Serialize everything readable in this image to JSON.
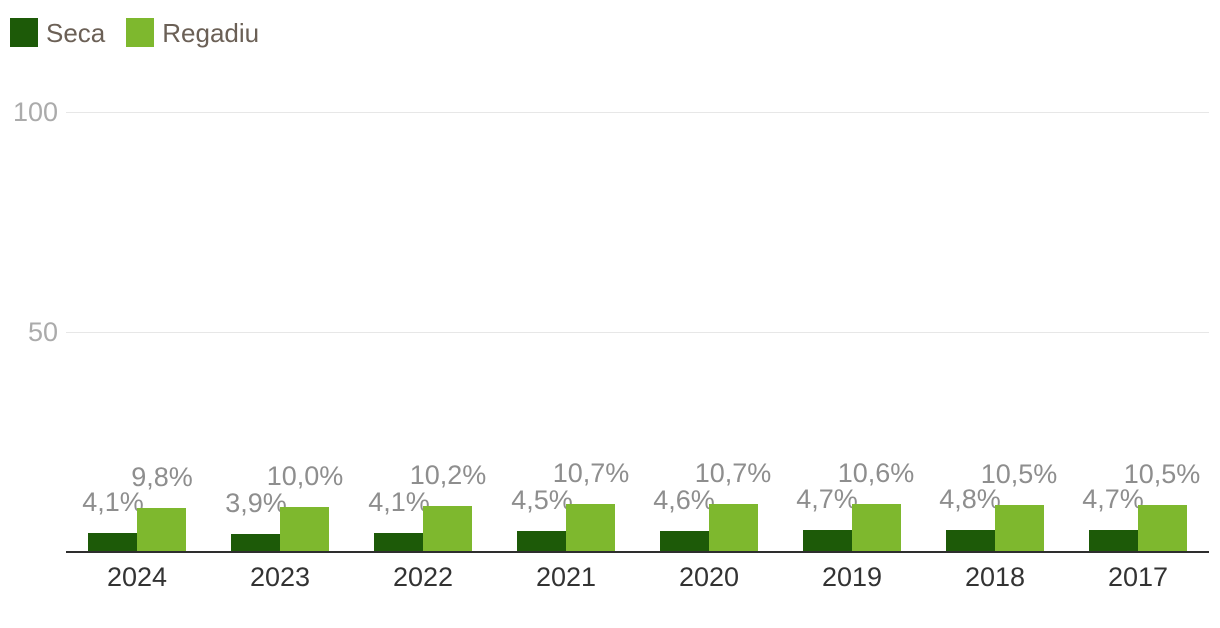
{
  "chart_data": {
    "type": "bar",
    "title": "",
    "categories": [
      "2024",
      "2023",
      "2022",
      "2021",
      "2020",
      "2019",
      "2018",
      "2017"
    ],
    "series": [
      {
        "name": "Seca",
        "color": "#1d5a08",
        "values": [
          4.1,
          3.9,
          4.1,
          4.5,
          4.6,
          4.7,
          4.8,
          4.7
        ],
        "labels": [
          "4,1%",
          "3,9%",
          "4,1%",
          "4,5%",
          "4,6%",
          "4,7%",
          "4,8%",
          "4,7%"
        ]
      },
      {
        "name": "Regadiu",
        "color": "#7eb82e",
        "values": [
          9.8,
          10.0,
          10.2,
          10.7,
          10.7,
          10.6,
          10.5,
          10.5
        ],
        "labels": [
          "9,8%",
          "10,0%",
          "10,2%",
          "10,7%",
          "10,7%",
          "10,6%",
          "10,5%",
          "10,5%"
        ]
      }
    ],
    "xlabel": "",
    "ylabel": "",
    "ylim": [
      0,
      100
    ],
    "yticks": [
      50,
      100
    ],
    "ytick_labels": [
      "50",
      "100"
    ],
    "grid": true,
    "legend_position": "top-left",
    "value_suffix": "%"
  },
  "colors": {
    "background": "#ffffff",
    "gridline": "#e7e7e7",
    "axis_line": "#2e2e2e",
    "value_label": "#8e8e8e",
    "x_label": "#333333",
    "ytick_label": "#ababab",
    "legend_text": "#6b6056"
  }
}
